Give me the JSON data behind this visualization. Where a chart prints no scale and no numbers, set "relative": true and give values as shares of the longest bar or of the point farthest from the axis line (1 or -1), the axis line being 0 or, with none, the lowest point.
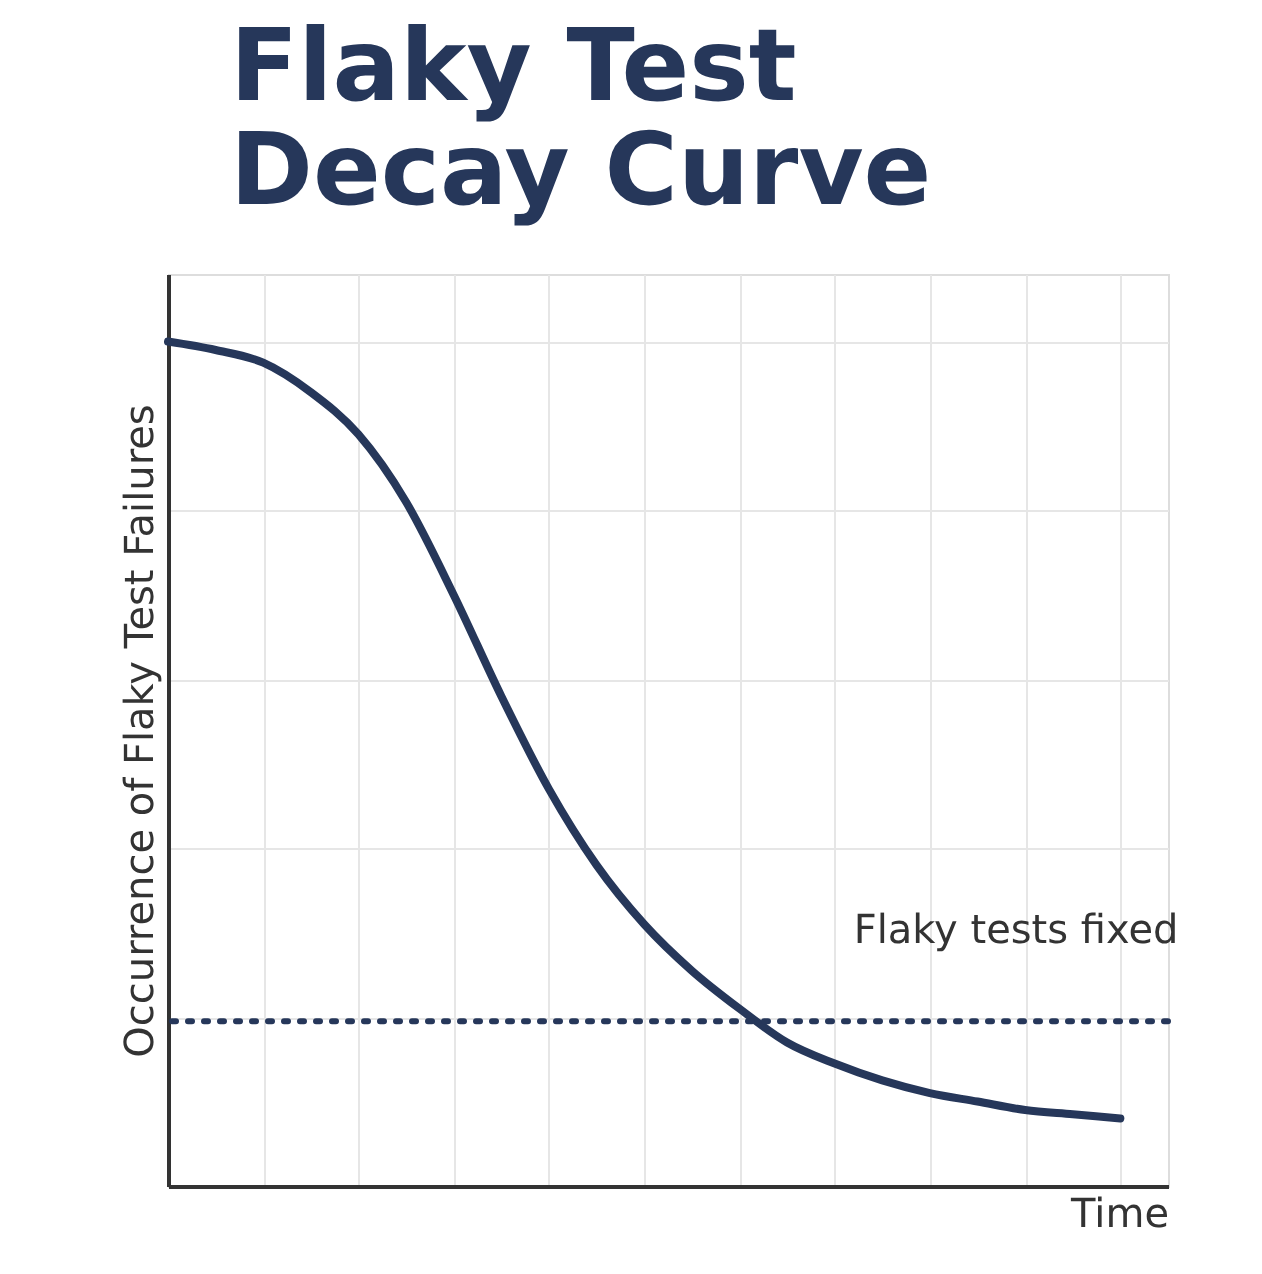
{
  "chart_data": {
    "type": "line",
    "title": "Flaky Test\nDecay Curve",
    "xlabel": "Time",
    "ylabel": "Occurrence of Flaky Test Failures",
    "relative": true,
    "grid": true,
    "tick_labels": false,
    "categories": [
      null,
      null,
      null,
      null,
      null,
      null,
      null,
      null,
      null,
      null,
      null,
      null,
      null,
      null,
      null,
      null,
      null,
      null,
      null,
      null,
      null
    ],
    "series": [
      {
        "color": "#26375a",
        "values": [
          1.0,
          0.99,
          0.975,
          0.94,
          0.89,
          0.81,
          0.7,
          0.58,
          0.47,
          0.38,
          0.31,
          0.255,
          0.21,
          0.17,
          0.145,
          0.125,
          0.11,
          0.1,
          0.09,
          0.085,
          0.08
        ]
      }
    ],
    "ref_lines": [
      {
        "axis": "y",
        "value": 0.195,
        "label": "Flaky tests fixed",
        "line_style": "dotted",
        "color": "#26375a"
      }
    ]
  }
}
